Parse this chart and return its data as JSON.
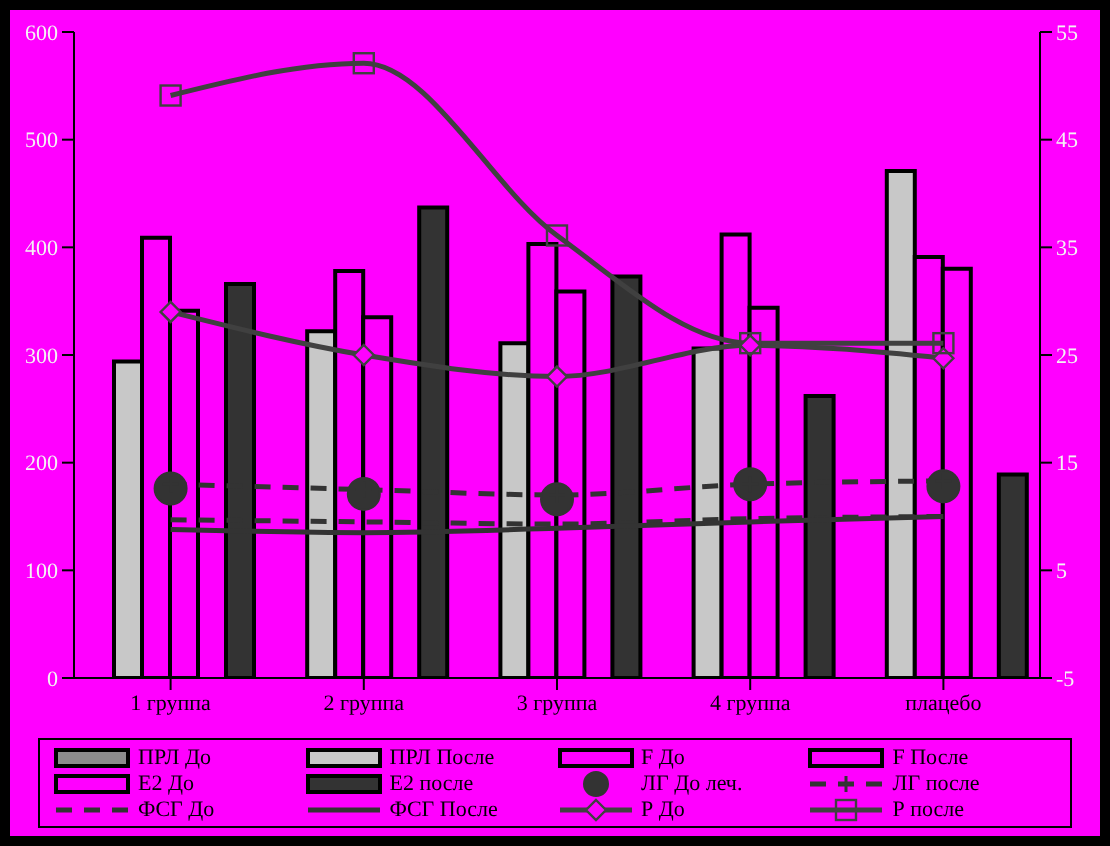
{
  "chart_data": {
    "type": "bar",
    "categories": [
      "1 группа",
      "2 группа",
      "3 группа",
      "4 группа",
      "плацебо"
    ],
    "series": [
      {
        "name": "ПРЛ До",
        "color": "#8c8c8c",
        "values": [
          null,
          null,
          null,
          null,
          null
        ]
      },
      {
        "name": "ПРЛ После",
        "color": "#c8c8c8",
        "values": [
          294,
          322,
          311,
          306,
          471
        ]
      },
      {
        "name": "F До",
        "color": "#ff00ff",
        "values": [
          409,
          378,
          403,
          412,
          391
        ]
      },
      {
        "name": "F После",
        "color": "#ff00ff",
        "values": [
          341,
          335,
          359,
          344,
          380
        ]
      },
      {
        "name": "E2 До",
        "color": "#ff00ff",
        "values": [
          null,
          null,
          null,
          null,
          null
        ]
      },
      {
        "name": "E2 после",
        "color": "#333333",
        "values": [
          366,
          437,
          373,
          262,
          189
        ]
      },
      {
        "name": "ЛГ До леч.",
        "type": "scatter",
        "axis": "y2",
        "color": "#333333",
        "marker": "circle",
        "values": [
          12.6,
          12.1,
          11.6,
          13.0,
          12.8
        ]
      },
      {
        "name": "ЛГ после",
        "type": "line",
        "axis": "y2",
        "color": "#333333",
        "line_style": "dashed",
        "marker": "cross",
        "values": [
          13.0,
          12.5,
          12.0,
          13.0,
          13.3
        ]
      },
      {
        "name": "ФСГ До",
        "type": "line",
        "axis": "y2",
        "color": "#333333",
        "line_style": "dashed",
        "marker": "none",
        "values": [
          9.7,
          9.5,
          9.3,
          9.8,
          10.0
        ]
      },
      {
        "name": "ФСГ После",
        "type": "line",
        "axis": "y2",
        "color": "#333333",
        "line_style": "solid",
        "marker": "none",
        "values": [
          8.8,
          8.5,
          8.9,
          9.5,
          10.0
        ]
      },
      {
        "name": "Р До",
        "type": "line",
        "axis": "y2",
        "color": "#404040",
        "line_style": "solid",
        "marker": "diamond",
        "values": [
          29.0,
          25.0,
          23.0,
          25.9,
          24.7
        ]
      },
      {
        "name": "Р после",
        "type": "line",
        "axis": "y2",
        "color": "#404040",
        "line_style": "solid",
        "marker": "square",
        "values": [
          49.1,
          52.1,
          36.1,
          26.1,
          26.1
        ]
      }
    ],
    "ylim": [
      0,
      600
    ],
    "yticks": [
      0,
      100,
      200,
      300,
      400,
      500,
      600
    ],
    "y2lim": [
      -5,
      55
    ],
    "y2ticks": [
      -5,
      5,
      15,
      25,
      35,
      45,
      55
    ],
    "grid": false,
    "legend": "bottom"
  }
}
